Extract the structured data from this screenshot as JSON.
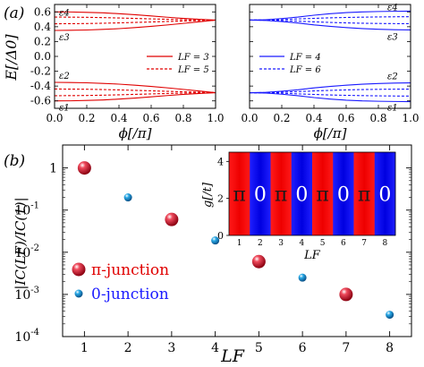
{
  "colors": {
    "red": "#e00000",
    "blue": "#1a1aff",
    "ball_red": "#d1122a",
    "ball_blue": "#1e9ad6"
  },
  "chart_data": [
    {
      "type": "line",
      "panel_label": "(a)",
      "xlabel": "ϕ[/π]",
      "ylabel": "E[/Δ0]",
      "xlim": [
        0.0,
        1.0
      ],
      "ylim": [
        -0.7,
        0.7
      ],
      "xticks": [
        "0.0",
        "0.2",
        "0.4",
        "0.6",
        "0.8",
        "1.0"
      ],
      "yticks": [
        "0.6",
        "0.4",
        "0.2",
        "0.0",
        "-0.2",
        "-0.4",
        "-0.6"
      ],
      "ytick_values": [
        0.6,
        0.4,
        0.2,
        0.0,
        -0.2,
        -0.4,
        -0.6
      ],
      "level_labels": [
        "ε4",
        "ε3",
        "ε2",
        "ε1"
      ],
      "x": [
        0.0,
        0.1,
        0.2,
        0.3,
        0.4,
        0.5,
        0.6,
        0.7,
        0.8,
        0.9,
        1.0
      ],
      "series": [
        {
          "name": "LF = 3",
          "style": "solid",
          "color": "red",
          "bands": [
            [
              0.6,
              0.599,
              0.594,
              0.587,
              0.576,
              0.562,
              0.545,
              0.528,
              0.512,
              0.5,
              0.49
            ],
            [
              0.35,
              0.352,
              0.356,
              0.364,
              0.374,
              0.388,
              0.405,
              0.424,
              0.445,
              0.467,
              0.49
            ],
            [
              -0.35,
              -0.352,
              -0.356,
              -0.364,
              -0.374,
              -0.388,
              -0.405,
              -0.424,
              -0.445,
              -0.467,
              -0.49
            ],
            [
              -0.6,
              -0.599,
              -0.594,
              -0.587,
              -0.576,
              -0.562,
              -0.545,
              -0.528,
              -0.512,
              -0.5,
              -0.49
            ]
          ]
        },
        {
          "name": "LF = 5",
          "style": "dashed",
          "color": "red",
          "bands": [
            [
              0.53,
              0.529,
              0.527,
              0.523,
              0.518,
              0.512,
              0.506,
              0.5,
              0.495,
              0.49,
              0.487
            ],
            [
              0.44,
              0.441,
              0.443,
              0.447,
              0.452,
              0.458,
              0.464,
              0.471,
              0.477,
              0.483,
              0.487
            ],
            [
              -0.44,
              -0.441,
              -0.443,
              -0.447,
              -0.452,
              -0.458,
              -0.464,
              -0.471,
              -0.477,
              -0.483,
              -0.487
            ],
            [
              -0.53,
              -0.529,
              -0.527,
              -0.523,
              -0.518,
              -0.512,
              -0.506,
              -0.5,
              -0.495,
              -0.49,
              -0.487
            ]
          ]
        }
      ],
      "legend": [
        "LF = 3",
        "LF = 5"
      ]
    },
    {
      "type": "line",
      "xlabel": "ϕ[/π]",
      "xlim": [
        0.0,
        1.0
      ],
      "ylim": [
        -0.7,
        0.7
      ],
      "xticks": [
        "0.0",
        "0.2",
        "0.4",
        "0.6",
        "0.8",
        "1.0"
      ],
      "level_labels": [
        "ε4",
        "ε3",
        "ε2",
        "ε1"
      ],
      "x": [
        0.0,
        0.1,
        0.2,
        0.3,
        0.4,
        0.5,
        0.6,
        0.7,
        0.8,
        0.9,
        1.0
      ],
      "series": [
        {
          "name": "LF = 4",
          "style": "solid",
          "color": "blue",
          "bands": [
            [
              0.49,
              0.495,
              0.51,
              0.53,
              0.555,
              0.575,
              0.59,
              0.6,
              0.605,
              0.608,
              0.61
            ],
            [
              0.49,
              0.485,
              0.47,
              0.45,
              0.425,
              0.405,
              0.388,
              0.375,
              0.366,
              0.36,
              0.357
            ],
            [
              -0.49,
              -0.485,
              -0.47,
              -0.45,
              -0.425,
              -0.405,
              -0.388,
              -0.375,
              -0.366,
              -0.36,
              -0.357
            ],
            [
              -0.49,
              -0.495,
              -0.51,
              -0.53,
              -0.555,
              -0.575,
              -0.59,
              -0.6,
              -0.605,
              -0.608,
              -0.61
            ]
          ]
        },
        {
          "name": "LF = 6",
          "style": "dashed",
          "color": "blue",
          "bands": [
            [
              0.49,
              0.492,
              0.497,
              0.505,
              0.513,
              0.52,
              0.525,
              0.529,
              0.532,
              0.534,
              0.535
            ],
            [
              0.49,
              0.488,
              0.483,
              0.475,
              0.466,
              0.458,
              0.452,
              0.447,
              0.444,
              0.442,
              0.441
            ],
            [
              -0.49,
              -0.488,
              -0.483,
              -0.475,
              -0.466,
              -0.458,
              -0.452,
              -0.447,
              -0.444,
              -0.442,
              -0.441
            ],
            [
              -0.49,
              -0.492,
              -0.497,
              -0.505,
              -0.513,
              -0.52,
              -0.525,
              -0.529,
              -0.532,
              -0.534,
              -0.535
            ]
          ]
        }
      ],
      "legend": [
        "LF = 4",
        "LF = 6"
      ]
    },
    {
      "type": "scatter",
      "panel_label": "(b)",
      "xlabel": "LF",
      "ylabel": "|IC(LF)/IC(1)|",
      "yscale": "log",
      "xlim": [
        0.5,
        8.5
      ],
      "ylim": [
        0.0001,
        3.5
      ],
      "xticks": [
        "1",
        "2",
        "3",
        "4",
        "5",
        "6",
        "7",
        "8"
      ],
      "yticks": [
        "1",
        "10-1",
        "10-2",
        "10-3",
        "10-4"
      ],
      "ytick_values": [
        1,
        0.1,
        0.01,
        0.001,
        0.0001
      ],
      "series": [
        {
          "name": "π-junction",
          "color": "ball_red",
          "points": [
            [
              1,
              1.0
            ],
            [
              3,
              0.06
            ],
            [
              5,
              0.006
            ],
            [
              7,
              0.001
            ]
          ]
        },
        {
          "name": "0-junction",
          "color": "ball_blue",
          "points": [
            [
              2,
              0.2
            ],
            [
              4,
              0.019
            ],
            [
              6,
              0.0025
            ],
            [
              8,
              0.00033
            ]
          ]
        }
      ],
      "legend": [
        "π-junction",
        "0-junction"
      ]
    },
    {
      "type": "heatmap",
      "xlabel": "LF",
      "ylabel": "g[/t]",
      "yticks": [
        "0",
        "2",
        "4"
      ],
      "ytick_values": [
        0,
        2,
        4
      ],
      "ylim": [
        0,
        4.5
      ],
      "xticks": [
        "1",
        "2",
        "3",
        "4",
        "5",
        "6",
        "7",
        "8"
      ],
      "cells": [
        "π",
        "0",
        "π",
        "0",
        "π",
        "0",
        "π",
        "0"
      ],
      "cell_colors": [
        "red",
        "blue",
        "red",
        "blue",
        "red",
        "blue",
        "red",
        "blue"
      ]
    }
  ]
}
